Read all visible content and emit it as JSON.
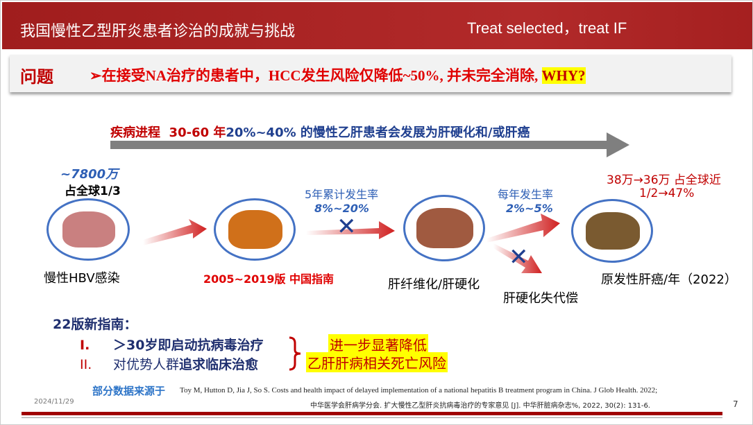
{
  "header": {
    "title": "我国慢性乙型肝炎患者诊治的成就与挑战",
    "tagline": "Treat selected，treat  IF"
  },
  "question": {
    "label": "问题",
    "text": "➢在接受NA治疗的患者中，HCC发生风险仅降低~50%, 并未完全消除, ",
    "highlight": "WHY?"
  },
  "progression": {
    "label": "疾病进程",
    "years": "30-60 年",
    "text": "20%~40% 的慢性乙肝患者会发展为肝硬化和/或肝癌"
  },
  "stages": {
    "hbv": {
      "count": "~7800万",
      "share": "占全球1/3",
      "label": "慢性HBV感染"
    },
    "guide_label": "2005~2019版 中国指南",
    "rate1": {
      "title": "5年累计发生率",
      "value": "8%~20%"
    },
    "fibrosis": {
      "label": "肝纤维化/肝硬化"
    },
    "rate2": {
      "title": "每年发生率",
      "value": "2%~5%"
    },
    "decomp": {
      "label": "肝硬化失代偿"
    },
    "hcc": {
      "stat1": "38万→36万 占全球近",
      "stat2": "1/2→47%",
      "label": "原发性肝癌/年（2022）"
    }
  },
  "guideline": {
    "title": "22版新指南：",
    "items": [
      {
        "num": "I.",
        "text": "＞30岁即启动抗病毒治疗"
      },
      {
        "num": "II.",
        "text_plain": "对优势人群",
        "text_bold": "追求临床治愈"
      }
    ],
    "outcome1": "进一步显著降低",
    "outcome2": "乙肝肝病相关死亡风险"
  },
  "footer": {
    "source_label": "部分数据来源于",
    "ref1": "Toy M, Hutton D, Jia J, So S. Costs and health impact of delayed implementation of a national hepatitis B treatment program in China. J Glob Health. 2022;",
    "ref2": "中华医学会肝病学分会. 扩大慢性乙型肝炎抗病毒治疗的专家意见 [J]. 中华肝脏病杂志%, 2022, 30(2): 131-6.",
    "date": "2024/11/29",
    "page": "7"
  }
}
